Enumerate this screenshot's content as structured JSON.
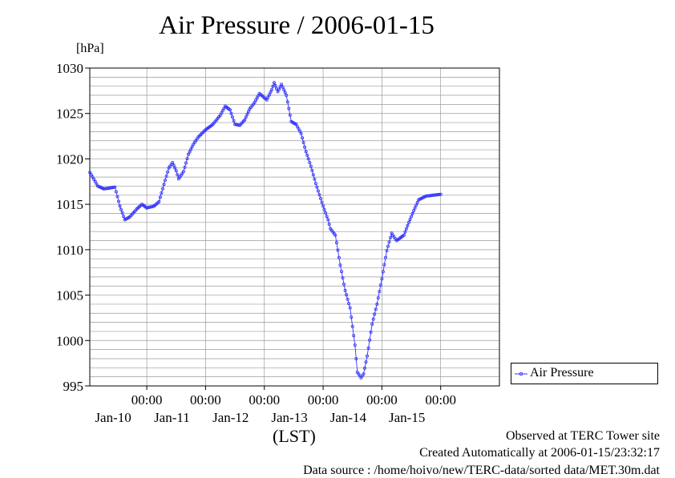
{
  "chart_data": {
    "type": "line",
    "title": "Air Pressure / 2006-01-15",
    "ylabel": "[hPa]",
    "xlabel": "(LST)",
    "ylim": [
      995,
      1030
    ],
    "yticks": [
      "995",
      "1000",
      "1005",
      "1010",
      "1015",
      "1020",
      "1025",
      "1030"
    ],
    "xlim_days": [
      -0.97,
      6
    ],
    "day_ticks": [
      {
        "time": "00:00",
        "day": "Jan-10"
      },
      {
        "time": "00:00",
        "day": "Jan-11"
      },
      {
        "time": "00:00",
        "day": "Jan-12"
      },
      {
        "time": "00:00",
        "day": "Jan-13"
      },
      {
        "time": "00:00",
        "day": "Jan-14"
      },
      {
        "time": "00:00",
        "day": "Jan-15"
      }
    ],
    "grid": true,
    "legend_position": "bottom-right",
    "series": [
      {
        "name": "Air Pressure",
        "color": "#3333ff",
        "points": [
          [
            "Jan-09 00:48",
            1018.5
          ],
          [
            "Jan-09 04:00",
            1017.0
          ],
          [
            "Jan-09 06:30",
            1016.7
          ],
          [
            "Jan-09 09:00",
            1016.8
          ],
          [
            "Jan-09 11:00",
            1016.9
          ],
          [
            "Jan-09 13:00",
            1014.8
          ],
          [
            "Jan-09 15:00",
            1013.3
          ],
          [
            "Jan-09 17:00",
            1013.6
          ],
          [
            "Jan-09 20:00",
            1014.5
          ],
          [
            "Jan-09 22:00",
            1015.0
          ],
          [
            "Jan-10 00:00",
            1014.6
          ],
          [
            "Jan-10 03:00",
            1014.8
          ],
          [
            "Jan-10 05:00",
            1015.3
          ],
          [
            "Jan-10 07:00",
            1017.2
          ],
          [
            "Jan-10 09:00",
            1019.0
          ],
          [
            "Jan-10 10:30",
            1019.6
          ],
          [
            "Jan-10 12:00",
            1018.7
          ],
          [
            "Jan-10 13:00",
            1017.8
          ],
          [
            "Jan-10 15:00",
            1018.6
          ],
          [
            "Jan-10 17:00",
            1020.5
          ],
          [
            "Jan-10 19:00",
            1021.6
          ],
          [
            "Jan-10 21:00",
            1022.4
          ],
          [
            "Jan-11 00:00",
            1023.2
          ],
          [
            "Jan-11 03:00",
            1023.8
          ],
          [
            "Jan-11 06:00",
            1024.8
          ],
          [
            "Jan-11 08:00",
            1025.8
          ],
          [
            "Jan-11 10:00",
            1025.4
          ],
          [
            "Jan-11 12:00",
            1023.8
          ],
          [
            "Jan-11 14:00",
            1023.7
          ],
          [
            "Jan-11 16:00",
            1024.3
          ],
          [
            "Jan-11 18:00",
            1025.5
          ],
          [
            "Jan-11 20:00",
            1026.2
          ],
          [
            "Jan-11 22:00",
            1027.2
          ],
          [
            "Jan-12 01:00",
            1026.5
          ],
          [
            "Jan-12 03:00",
            1027.6
          ],
          [
            "Jan-12 04:00",
            1028.4
          ],
          [
            "Jan-12 05:30",
            1027.4
          ],
          [
            "Jan-12 07:00",
            1028.2
          ],
          [
            "Jan-12 09:00",
            1027.0
          ],
          [
            "Jan-12 11:00",
            1024.1
          ],
          [
            "Jan-12 13:00",
            1023.8
          ],
          [
            "Jan-12 15:00",
            1022.8
          ],
          [
            "Jan-12 17:00",
            1020.8
          ],
          [
            "Jan-12 19:00",
            1019.2
          ],
          [
            "Jan-12 21:00",
            1017.3
          ],
          [
            "Jan-13 00:00",
            1014.8
          ],
          [
            "Jan-13 02:00",
            1013.3
          ],
          [
            "Jan-13 03:00",
            1012.3
          ],
          [
            "Jan-13 05:00",
            1011.6
          ],
          [
            "Jan-13 07:00",
            1008.3
          ],
          [
            "Jan-13 09:00",
            1005.5
          ],
          [
            "Jan-13 11:00",
            1003.6
          ],
          [
            "Jan-13 13:00",
            999.5
          ],
          [
            "Jan-13 14:00",
            996.5
          ],
          [
            "Jan-13 15:30",
            995.9
          ],
          [
            "Jan-13 16:30",
            996.3
          ],
          [
            "Jan-13 18:00",
            998.3
          ],
          [
            "Jan-13 20:00",
            1001.8
          ],
          [
            "Jan-13 22:00",
            1004.0
          ],
          [
            "Jan-14 00:00",
            1006.8
          ],
          [
            "Jan-14 02:00",
            1009.9
          ],
          [
            "Jan-14 04:00",
            1011.8
          ],
          [
            "Jan-14 06:00",
            1011.0
          ],
          [
            "Jan-14 09:00",
            1011.6
          ],
          [
            "Jan-14 11:00",
            1013.0
          ],
          [
            "Jan-14 13:00",
            1014.3
          ],
          [
            "Jan-14 15:00",
            1015.5
          ],
          [
            "Jan-14 18:00",
            1015.9
          ],
          [
            "Jan-15 00:00",
            1016.1
          ]
        ]
      }
    ]
  },
  "footer": {
    "line1": "Observed at TERC Tower site",
    "line2": "Created Automatically at 2006-01-15/23:32:17",
    "line3": "Data source : /home/hoivo/new/TERC-data/sorted  data/MET.30m.dat"
  }
}
